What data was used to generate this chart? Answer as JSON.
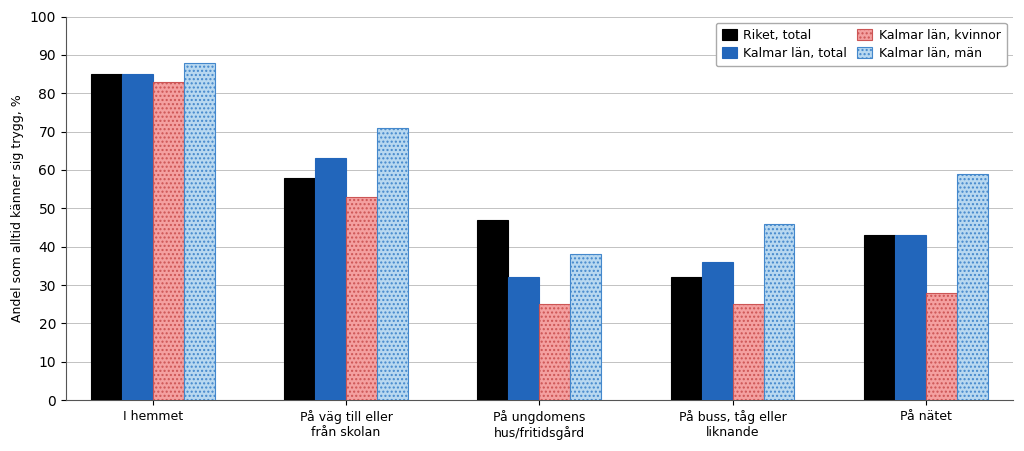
{
  "categories": [
    "I hemmet",
    "På väg till eller\nfrån skolan",
    "På ungdomens\nhus/fritidsgård",
    "På buss, tåg eller\nliknande",
    "På nätet"
  ],
  "series": {
    "Riket, total": [
      85,
      58,
      47,
      32,
      43
    ],
    "Kalmar län, total": [
      85,
      63,
      32,
      36,
      43
    ],
    "Kalmar län, kvinnor": [
      83,
      53,
      25,
      25,
      28
    ],
    "Kalmar län, män": [
      88,
      71,
      38,
      46,
      59
    ]
  },
  "colors": {
    "Riket, total": "#000000",
    "Kalmar län, total": "#2266bb",
    "Kalmar län, kvinnor": "#f4a0a0",
    "Kalmar län, män": "#b8d8f0"
  },
  "hatches": {
    "Riket, total": "",
    "Kalmar län, total": "",
    "Kalmar län, kvinnor": "....",
    "Kalmar län, män": "...."
  },
  "hatch_colors": {
    "Riket, total": "#000000",
    "Kalmar län, total": "#2266bb",
    "Kalmar län, kvinnor": "#cc5555",
    "Kalmar län, män": "#4488cc"
  },
  "ylabel": "Andel som alltid känner sig trygg, %",
  "ylim": [
    0,
    100
  ],
  "yticks": [
    0,
    10,
    20,
    30,
    40,
    50,
    60,
    70,
    80,
    90,
    100
  ],
  "bar_width": 0.16,
  "legend_order": [
    "Riket, total",
    "Kalmar län, total",
    "Kalmar län, kvinnor",
    "Kalmar län, män"
  ],
  "edge_color": "#555555",
  "edge_width": 0.8
}
